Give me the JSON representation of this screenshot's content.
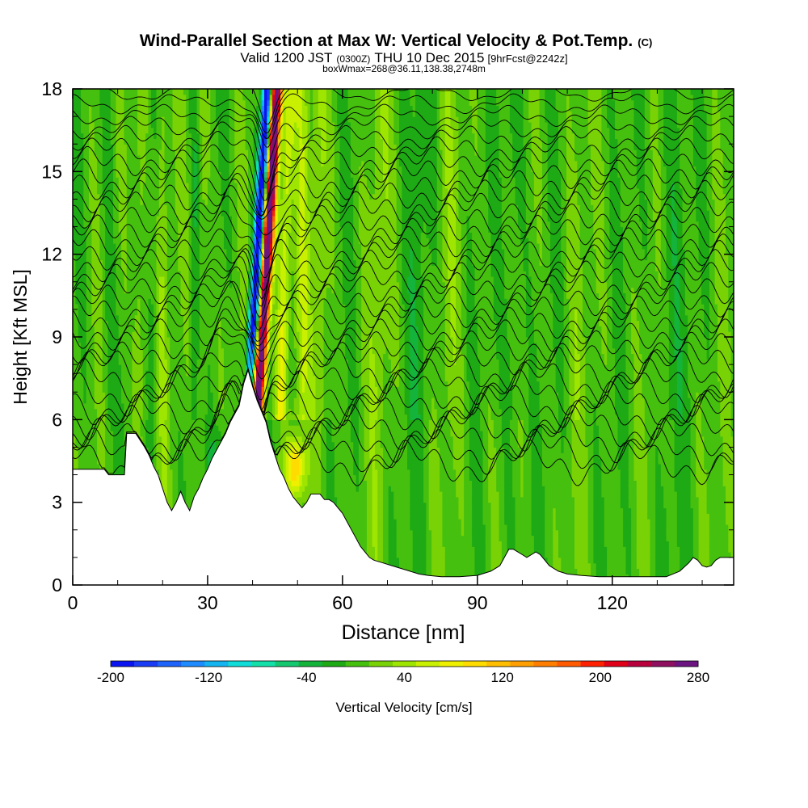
{
  "chart_data": {
    "type": "heatmap",
    "title": "Wind-Parallel Section at Max W: Vertical Velocity & Pot.Temp.",
    "title_mark": "(C)",
    "subtitle": {
      "prefix": "Valid 1200 JST",
      "utc": "(0300Z)",
      "date": "THU 10 Dec 2015",
      "forecast": "[9hrFcst@2242z]"
    },
    "subtitle2": "boxWmax=268@36.11,138.38,2748m",
    "xlabel": "Distance [nm]",
    "ylabel": "Height [Kft MSL]",
    "xlim": [
      0,
      147
    ],
    "ylim": [
      0,
      18
    ],
    "x_ticks": [
      0,
      30,
      60,
      90,
      120
    ],
    "y_ticks": [
      0,
      3,
      6,
      9,
      12,
      15,
      18
    ],
    "x_tick_labels": [
      "0",
      "30",
      "60",
      "90",
      "120"
    ],
    "y_tick_labels": [
      "0",
      "3",
      "6",
      "9",
      "12",
      "15",
      "18"
    ],
    "colorbar": {
      "label": "Vertical Velocity [cm/s]",
      "min": -200,
      "max": 280,
      "step": 20,
      "tick_labels": [
        "-200",
        "-120",
        "-40",
        "40",
        "120",
        "200",
        "280"
      ],
      "tick_values": [
        -200,
        -120,
        -40,
        40,
        120,
        200,
        280
      ],
      "colors": [
        "#0b14f0",
        "#1a3cf5",
        "#1e64fa",
        "#1e8cff",
        "#14b4f0",
        "#10dcd8",
        "#12e0a8",
        "#14c870",
        "#14b43c",
        "#1eaa14",
        "#46c00e",
        "#78d205",
        "#9ee602",
        "#c8f000",
        "#eef000",
        "#ffdc00",
        "#ffbe00",
        "#ff9e00",
        "#ff7e00",
        "#ff5a00",
        "#ff2000",
        "#e00018",
        "#b8003c",
        "#901060",
        "#6c1480"
      ]
    },
    "max_updraft": {
      "value_cm_s": 268,
      "lat": 36.11,
      "lon": 138.38,
      "height_m": 2748
    },
    "contours": "potential temperature isentropes (K), roughly every 1 K"
  }
}
